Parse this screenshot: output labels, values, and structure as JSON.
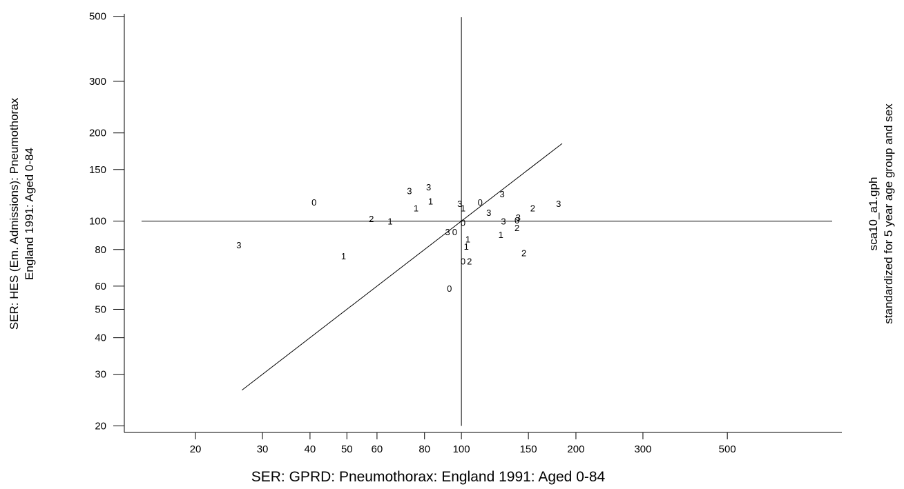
{
  "chart_data": {
    "type": "scatter",
    "x_scale": "log",
    "y_scale": "log",
    "xlabel": "SER: GPRD: Pneumothorax: England 1991: Aged 0-84",
    "ylabel_lines": [
      "SER: HES (Em. Admissions): Pneumothorax",
      "England 1991: Aged 0-84"
    ],
    "right_lines": [
      "sca10_a1.gph",
      "standardized for 5 year age group and sex"
    ],
    "x_ticks": [
      20,
      30,
      40,
      50,
      60,
      80,
      100,
      150,
      200,
      300,
      500
    ],
    "y_ticks": [
      20,
      30,
      40,
      50,
      60,
      80,
      100,
      150,
      200,
      300,
      500
    ],
    "xlim": [
      13,
      1000
    ],
    "ylim": [
      19,
      510
    ],
    "reference_lines": {
      "horizontal_y": 100,
      "vertical_x": 100
    },
    "identity_line": [
      26.5,
      184
    ],
    "points": [
      {
        "x": 41,
        "y": 116,
        "label": "0"
      },
      {
        "x": 26,
        "y": 83,
        "label": "3"
      },
      {
        "x": 49,
        "y": 76,
        "label": "1"
      },
      {
        "x": 58,
        "y": 102,
        "label": "2"
      },
      {
        "x": 65,
        "y": 100,
        "label": "1"
      },
      {
        "x": 73,
        "y": 127,
        "label": "3"
      },
      {
        "x": 76,
        "y": 111,
        "label": "1"
      },
      {
        "x": 82,
        "y": 131,
        "label": "3"
      },
      {
        "x": 83,
        "y": 117,
        "label": "1"
      },
      {
        "x": 92,
        "y": 92,
        "label": "3"
      },
      {
        "x": 96,
        "y": 92,
        "label": "0"
      },
      {
        "x": 99,
        "y": 115,
        "label": "3"
      },
      {
        "x": 101,
        "y": 111,
        "label": "1"
      },
      {
        "x": 101,
        "y": 99,
        "label": "0"
      },
      {
        "x": 104,
        "y": 87,
        "label": "1"
      },
      {
        "x": 103,
        "y": 82,
        "label": "1"
      },
      {
        "x": 101,
        "y": 73,
        "label": "0"
      },
      {
        "x": 105,
        "y": 73,
        "label": "2"
      },
      {
        "x": 93,
        "y": 59,
        "label": "0"
      },
      {
        "x": 112,
        "y": 116,
        "label": "0"
      },
      {
        "x": 118,
        "y": 107,
        "label": "3"
      },
      {
        "x": 128,
        "y": 124,
        "label": "3"
      },
      {
        "x": 129,
        "y": 100,
        "label": "3"
      },
      {
        "x": 127,
        "y": 90,
        "label": "1"
      },
      {
        "x": 140,
        "y": 101,
        "label": "0"
      },
      {
        "x": 141,
        "y": 103,
        "label": "3"
      },
      {
        "x": 140,
        "y": 95,
        "label": "2"
      },
      {
        "x": 154,
        "y": 111,
        "label": "2"
      },
      {
        "x": 146,
        "y": 78,
        "label": "2"
      },
      {
        "x": 180,
        "y": 115,
        "label": "3"
      }
    ]
  }
}
